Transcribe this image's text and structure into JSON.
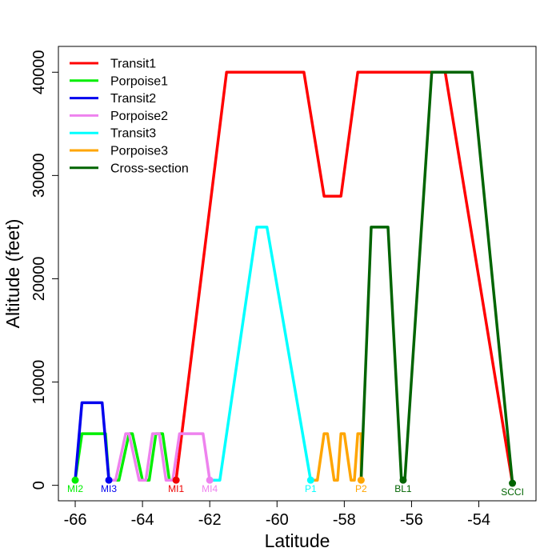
{
  "chart_data": {
    "type": "line",
    "title": "",
    "xlabel": "Latitude",
    "ylabel": "Altitude (feet)",
    "xlim": [
      -66.5,
      -52.3
    ],
    "ylim": [
      -1500,
      42500
    ],
    "xticks": [
      -66,
      -64,
      -62,
      -60,
      -58,
      -56,
      -54
    ],
    "yticks": [
      0,
      10000,
      20000,
      30000,
      40000
    ],
    "xtick_labels": [
      "-66",
      "-64",
      "-62",
      "-60",
      "-58",
      "-56",
      "-54"
    ],
    "ytick_labels": [
      "0",
      "10000",
      "20000",
      "30000",
      "40000"
    ],
    "grid": false,
    "legend_position": "top-left",
    "series": [
      {
        "name": "Transit1",
        "color": "#ff0000",
        "points": [
          [
            -63.0,
            500
          ],
          [
            -61.5,
            40000
          ],
          [
            -59.2,
            40000
          ],
          [
            -58.6,
            28000
          ],
          [
            -58.1,
            28000
          ],
          [
            -57.6,
            40000
          ],
          [
            -55.0,
            40000
          ],
          [
            -53.0,
            200
          ]
        ]
      },
      {
        "name": "Porpoise1",
        "color": "#00ee00",
        "points": [
          [
            -66.0,
            500
          ],
          [
            -65.8,
            5000
          ],
          [
            -65.1,
            5000
          ],
          [
            -65.0,
            500
          ],
          [
            -64.7,
            500
          ],
          [
            -64.4,
            5000
          ],
          [
            -64.3,
            5000
          ],
          [
            -64.0,
            500
          ],
          [
            -63.8,
            500
          ],
          [
            -63.6,
            5000
          ],
          [
            -63.4,
            5000
          ],
          [
            -63.2,
            500
          ],
          [
            -63.0,
            500
          ]
        ]
      },
      {
        "name": "Transit2",
        "color": "#0000ee",
        "points": [
          [
            -66.0,
            500
          ],
          [
            -65.8,
            8000
          ],
          [
            -65.2,
            8000
          ],
          [
            -65.0,
            500
          ]
        ]
      },
      {
        "name": "Porpoise2",
        "color": "#ee82ee",
        "points": [
          [
            -65.0,
            500
          ],
          [
            -64.8,
            500
          ],
          [
            -64.5,
            5000
          ],
          [
            -64.4,
            5000
          ],
          [
            -64.1,
            500
          ],
          [
            -63.9,
            500
          ],
          [
            -63.7,
            5000
          ],
          [
            -63.5,
            5000
          ],
          [
            -63.3,
            500
          ],
          [
            -63.1,
            500
          ],
          [
            -62.9,
            5000
          ],
          [
            -62.2,
            5000
          ],
          [
            -62.0,
            500
          ]
        ]
      },
      {
        "name": "Transit3",
        "color": "#00ffff",
        "points": [
          [
            -62.0,
            500
          ],
          [
            -61.7,
            500
          ],
          [
            -60.6,
            25000
          ],
          [
            -60.3,
            25000
          ],
          [
            -59.0,
            500
          ]
        ]
      },
      {
        "name": "Porpoise3",
        "color": "#ffa500",
        "points": [
          [
            -59.0,
            500
          ],
          [
            -58.8,
            500
          ],
          [
            -58.6,
            5000
          ],
          [
            -58.5,
            5000
          ],
          [
            -58.3,
            500
          ],
          [
            -58.2,
            500
          ],
          [
            -58.1,
            5000
          ],
          [
            -58.0,
            5000
          ],
          [
            -57.8,
            500
          ],
          [
            -57.7,
            500
          ],
          [
            -57.6,
            5000
          ],
          [
            -57.5,
            5000
          ],
          [
            -57.5,
            500
          ]
        ]
      },
      {
        "name": "Cross-section",
        "color": "#006400",
        "points": [
          [
            -57.5,
            500
          ],
          [
            -57.2,
            25000
          ],
          [
            -56.7,
            25000
          ],
          [
            -56.3,
            500
          ],
          [
            -56.2,
            500
          ],
          [
            -55.4,
            40000
          ],
          [
            -54.2,
            40000
          ],
          [
            -53.0,
            200
          ]
        ]
      }
    ],
    "waypoints": [
      {
        "label": "MI2",
        "x": -66.0,
        "y": 500,
        "color": "#00ee00"
      },
      {
        "label": "MI3",
        "x": -65.0,
        "y": 500,
        "color": "#0000ee"
      },
      {
        "label": "MI1",
        "x": -63.0,
        "y": 500,
        "color": "#ee0000"
      },
      {
        "label": "MI4",
        "x": -62.0,
        "y": 500,
        "color": "#ee82ee"
      },
      {
        "label": "P1",
        "x": -59.0,
        "y": 500,
        "color": "#00ffff"
      },
      {
        "label": "P2",
        "x": -57.5,
        "y": 500,
        "color": "#ffa500"
      },
      {
        "label": "BL1",
        "x": -56.25,
        "y": 500,
        "color": "#006400"
      },
      {
        "label": "SCCI",
        "x": -53.0,
        "y": 200,
        "color": "#006400"
      }
    ]
  }
}
